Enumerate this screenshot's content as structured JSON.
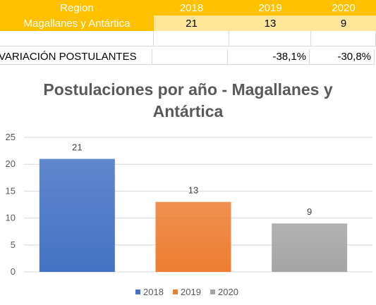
{
  "table": {
    "header": [
      "Region",
      "2018",
      "2019",
      "2020"
    ],
    "row1": [
      "Magallanes y Antártica",
      "21",
      "13",
      "9"
    ],
    "row3": [
      "VARIACIÓN POSTULANTES",
      "",
      "-38,1%",
      "-30,8%"
    ]
  },
  "chart_data": {
    "type": "bar",
    "title_line1": "Postulaciones por año - Magallanes y",
    "title_line2": "Antártica",
    "categories": [
      "2018",
      "2019",
      "2020"
    ],
    "values": [
      21,
      13,
      9
    ],
    "data_labels": [
      "21",
      "13",
      "9"
    ],
    "ylim": [
      0,
      25
    ],
    "yticks": [
      0,
      5,
      10,
      15,
      20,
      25
    ],
    "ytick_labels": [
      "0",
      "5",
      "10",
      "15",
      "20",
      "25"
    ],
    "grid": true,
    "legend_position": "bottom",
    "legend": [
      "2018",
      "2019",
      "2020"
    ],
    "colors": [
      "#4472c4",
      "#ed7d31",
      "#a5a5a5"
    ]
  }
}
